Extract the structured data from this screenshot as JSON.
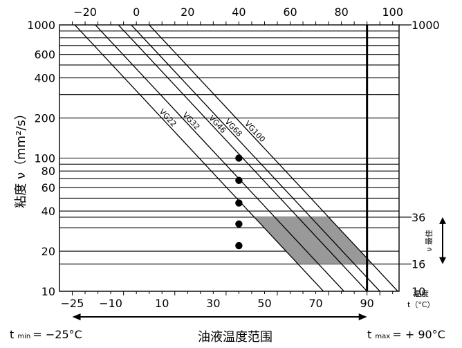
{
  "chart_data": {
    "type": "line",
    "ylabel": "粘度 ν（mm²/s）",
    "xlabel": "油液温度范围",
    "y_scale": "log",
    "ylim": [
      10,
      1000
    ],
    "bottom_axis": {
      "ticks": [
        "−25",
        "−10",
        "10",
        "30",
        "50",
        "70",
        "90"
      ],
      "values": [
        -25,
        -10,
        10,
        30,
        50,
        70,
        90
      ]
    },
    "top_axis": {
      "ticks": [
        "−20",
        "0",
        "20",
        "40",
        "60",
        "80",
        "100"
      ],
      "values": [
        -20,
        0,
        20,
        40,
        60,
        80,
        100
      ]
    },
    "left_ticks": [
      "10",
      "20",
      "40",
      "60",
      "80",
      "100",
      "200",
      "400",
      "600",
      "1000"
    ],
    "left_tick_values": [
      10,
      20,
      40,
      60,
      80,
      100,
      200,
      400,
      600,
      1000
    ],
    "right_ticks": [
      "10",
      "16",
      "36",
      "1000"
    ],
    "right_tick_values": [
      10,
      16,
      36,
      1000
    ],
    "right_annotations": {
      "temp_word": "温度",
      "temp_unit": "t（°C）",
      "range_word": "最佳",
      "nu": "ν"
    },
    "series": [
      {
        "name": "VG22",
        "points": [
          [
            -24,
            1000
          ],
          [
            73,
            10
          ]
        ]
      },
      {
        "name": "VG32",
        "points": [
          [
            -16,
            1000
          ],
          [
            81,
            10
          ]
        ]
      },
      {
        "name": "VG46",
        "points": [
          [
            -7,
            1000
          ],
          [
            90,
            10
          ]
        ]
      },
      {
        "name": "VG68",
        "points": [
          [
            -2,
            1000
          ],
          [
            95,
            10
          ]
        ]
      },
      {
        "name": "VG100",
        "points": [
          [
            5,
            1000
          ],
          [
            102,
            10
          ]
        ]
      }
    ],
    "markers": [
      {
        "x": 40,
        "y": 100
      },
      {
        "x": 40,
        "y": 68
      },
      {
        "x": 40,
        "y": 46
      },
      {
        "x": 40,
        "y": 32
      },
      {
        "x": 40,
        "y": 22
      }
    ],
    "optimal_band": {
      "y_min": 16,
      "y_max": 36
    },
    "max_line_x": 90,
    "footer": {
      "tmin_label": "t",
      "tmin_sub": "min",
      "tmin_value": "= −25°C",
      "tmax_label": "t",
      "tmax_sub": "max",
      "tmax_value": "= + 90°C",
      "range_label": "油液温度范围"
    }
  }
}
